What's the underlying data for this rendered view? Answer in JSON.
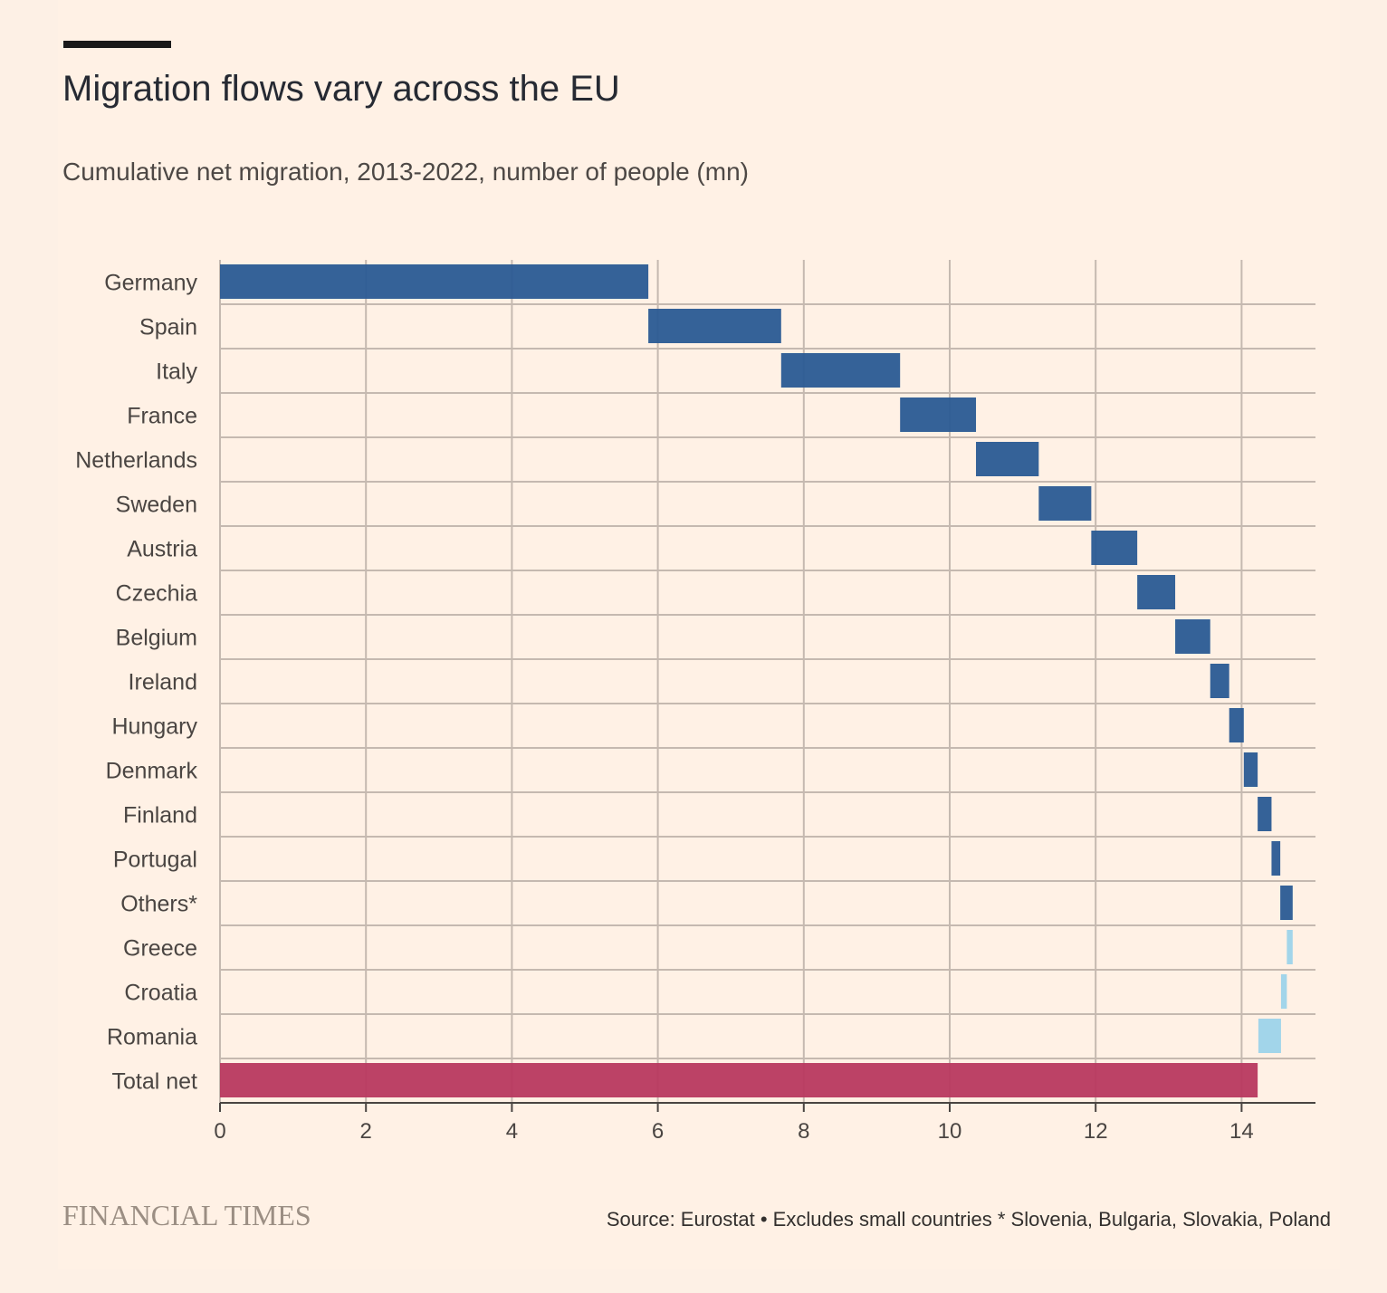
{
  "header": {
    "title": "Migration flows vary across the EU",
    "subtitle": "Cumulative net migration, 2013-2022, number of people (mn)"
  },
  "footer": {
    "brand": "FINANCIAL TIMES",
    "source": "Source: Eurostat • Excludes small countries * Slovenia, Bulgaria, Slovakia, Poland"
  },
  "colors": {
    "positive": "#2a5a93",
    "negative": "#9dd3ea",
    "total": "#b8385f",
    "grid": "#c5b9b0",
    "axis": "#4a4542",
    "text": "#4a4542"
  },
  "chart_data": {
    "type": "bar",
    "subtype": "waterfall",
    "orientation": "horizontal",
    "title": "Migration flows vary across the EU",
    "subtitle": "Cumulative net migration, 2013-2022, number of people (mn)",
    "xlabel": "",
    "ylabel": "",
    "xlim": [
      0,
      15
    ],
    "xticks": [
      0,
      2,
      4,
      6,
      8,
      10,
      12,
      14
    ],
    "grid": true,
    "categories": [
      "Germany",
      "Spain",
      "Italy",
      "France",
      "Netherlands",
      "Sweden",
      "Austria",
      "Czechia",
      "Belgium",
      "Ireland",
      "Hungary",
      "Denmark",
      "Finland",
      "Portugal",
      "Others*",
      "Greece",
      "Croatia",
      "Romania",
      "Total net"
    ],
    "values": [
      5.87,
      1.82,
      1.63,
      1.04,
      0.86,
      0.72,
      0.63,
      0.52,
      0.48,
      0.26,
      0.2,
      0.19,
      0.19,
      0.12,
      0.17,
      -0.08,
      -0.08,
      -0.31,
      14.22
    ],
    "kinds": [
      "increase",
      "increase",
      "increase",
      "increase",
      "increase",
      "increase",
      "increase",
      "increase",
      "increase",
      "increase",
      "increase",
      "increase",
      "increase",
      "increase",
      "increase",
      "decrease",
      "decrease",
      "decrease",
      "total"
    ]
  }
}
